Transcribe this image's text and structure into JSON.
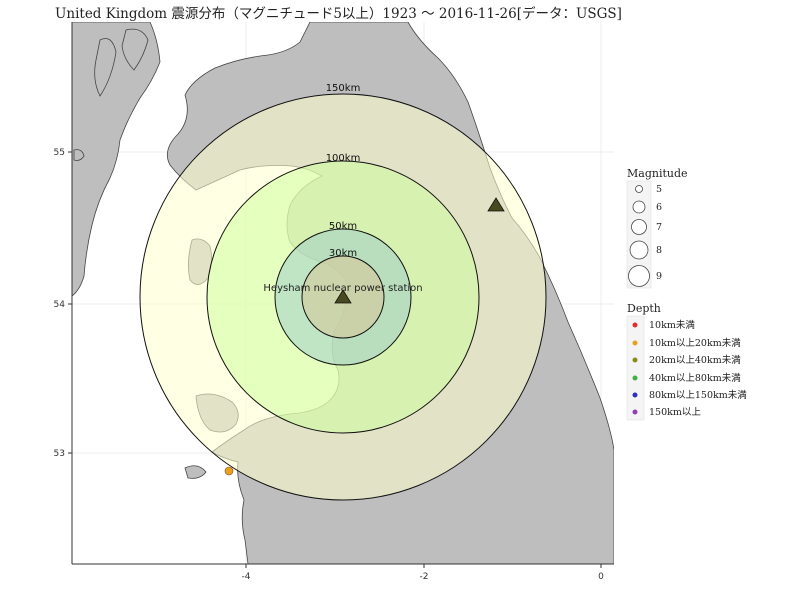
{
  "title": "United Kingdom 震源分布（マグニチュード5以上）1923 〜 2016-11-26[データ：USGS]",
  "site": {
    "label": "Heysham nuclear power station",
    "lon": -2.92,
    "lat": 54.03
  },
  "epicenters": [
    {
      "lon": -1.17,
      "lat": 54.65,
      "marker": "triangle"
    },
    {
      "lon": -4.17,
      "lat": 52.88,
      "marker": "circle",
      "depth_class": "10km以上20km未満",
      "color": "#e8a020"
    }
  ],
  "rings": [
    {
      "label": "150km",
      "fill": "#ffffcc"
    },
    {
      "label": "100km",
      "fill": "#d9f7b8"
    },
    {
      "label": "50km",
      "fill": "#b7e3c1"
    },
    {
      "label": "30km",
      "fill": "#d8d0a2"
    }
  ],
  "axes": {
    "x_ticks": [
      "-4",
      "-2",
      "0"
    ],
    "y_ticks": [
      "55",
      "54",
      "53"
    ]
  },
  "legend": {
    "magnitude_title": "Magnitude",
    "magnitudes": [
      "5",
      "6",
      "7",
      "8",
      "9"
    ],
    "depth_title": "Depth",
    "depths": [
      {
        "label": "10km未満",
        "color": "#e03030"
      },
      {
        "label": "10km以上20km未満",
        "color": "#e8a020"
      },
      {
        "label": "20km以上40km未満",
        "color": "#8a8a20"
      },
      {
        "label": "40km以上80km未満",
        "color": "#3cb040"
      },
      {
        "label": "80km以上150km未満",
        "color": "#3030c0"
      },
      {
        "label": "150km以上",
        "color": "#9040b0"
      }
    ]
  },
  "colors": {
    "land": "#bebebe",
    "sea": "#ffffff",
    "coast": "#444444"
  }
}
